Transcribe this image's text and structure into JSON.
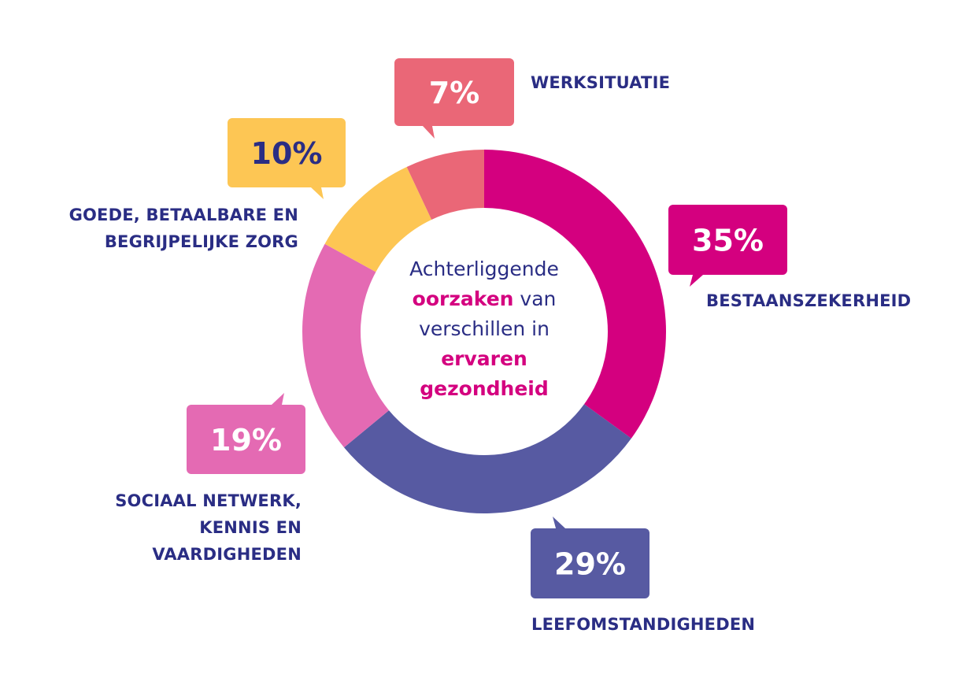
{
  "chart_data": {
    "type": "pie",
    "variant": "donut",
    "start": "top",
    "direction": "clockwise",
    "center_title": {
      "line1": "Achterliggende",
      "line2_highlight": "oorzaken",
      "line2_rest": " van",
      "line3": "verschillen in",
      "line4_highlight": "ervaren",
      "line5_highlight": "gezondheid"
    },
    "slices": [
      {
        "label": "BESTAANSZEKERHEID",
        "value": 35,
        "value_label": "35%",
        "color": "#d4007f",
        "text_color": "#ffffff"
      },
      {
        "label": "LEEFOMSTANDIGHEDEN",
        "value": 29,
        "value_label": "29%",
        "color": "#575aa2",
        "text_color": "#ffffff"
      },
      {
        "label": "SOCIAAL NETWERK, KENNIS EN VAARDIGHEDEN",
        "label_lines": [
          "SOCIAAL NETWERK,",
          "KENNIS EN",
          "VAARDIGHEDEN"
        ],
        "value": 19,
        "value_label": "19%",
        "color": "#e46ab3",
        "text_color": "#ffffff"
      },
      {
        "label": "GOEDE, BETAALBARE EN BEGRIJPELIJKE ZORG",
        "label_lines": [
          "GOEDE, BETAALBARE EN",
          "BEGRIJPELIJKE ZORG"
        ],
        "value": 10,
        "value_label": "10%",
        "color": "#fdc654",
        "text_color": "#2a2d84"
      },
      {
        "label": "WERKSITUATIE",
        "value": 7,
        "value_label": "7%",
        "color": "#ea6777",
        "text_color": "#ffffff"
      }
    ],
    "label_color": "#2a2d84",
    "highlight_color": "#d4007f"
  }
}
